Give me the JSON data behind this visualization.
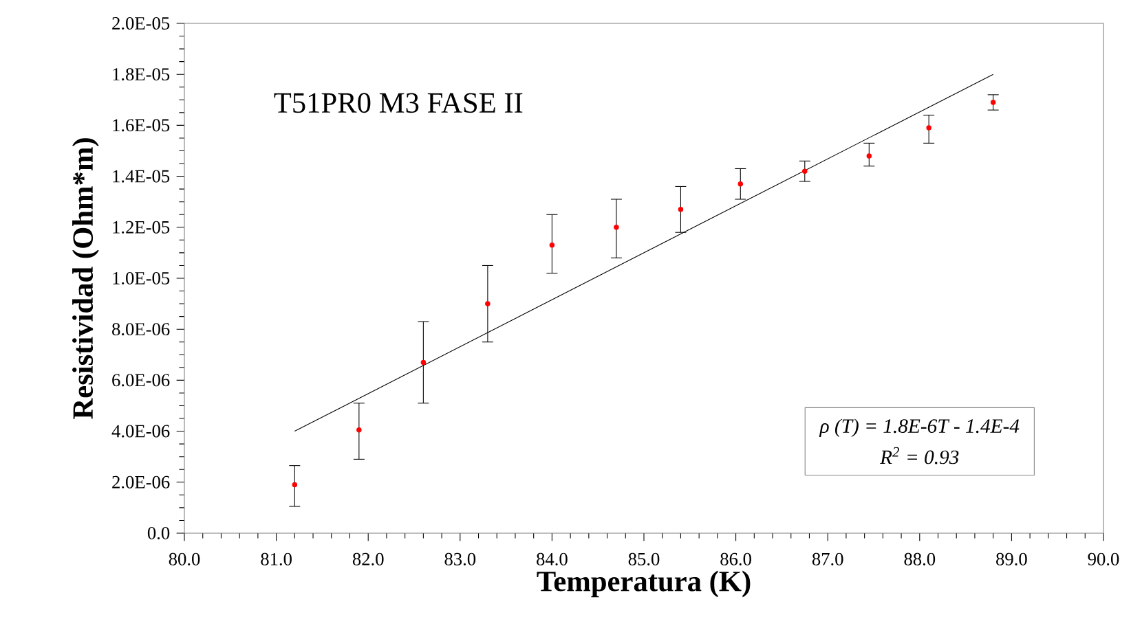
{
  "chart_data": {
    "type": "scatter",
    "xlabel": "Temperatura (K)",
    "ylabel": "Resistividad (Ohm*m)",
    "xlim": [
      80,
      90
    ],
    "ylim": [
      0,
      2e-05
    ],
    "xticks": [
      {
        "value": 80,
        "label": "80.0"
      },
      {
        "value": 81,
        "label": "81.0"
      },
      {
        "value": 82,
        "label": "82.0"
      },
      {
        "value": 83,
        "label": "83.0"
      },
      {
        "value": 84,
        "label": "84.0"
      },
      {
        "value": 85,
        "label": "85.0"
      },
      {
        "value": 86,
        "label": "86.0"
      },
      {
        "value": 87,
        "label": "87.0"
      },
      {
        "value": 88,
        "label": "88.0"
      },
      {
        "value": 89,
        "label": "89.0"
      },
      {
        "value": 90,
        "label": "90.0"
      }
    ],
    "yticks": [
      {
        "value": 0,
        "label": "0.0"
      },
      {
        "value": 2e-06,
        "label": "2.0E-06"
      },
      {
        "value": 4e-06,
        "label": "4.0E-06"
      },
      {
        "value": 6e-06,
        "label": "6.0E-06"
      },
      {
        "value": 8e-06,
        "label": "8.0E-06"
      },
      {
        "value": 1e-05,
        "label": "1.0E-05"
      },
      {
        "value": 1.2e-05,
        "label": "1.2E-05"
      },
      {
        "value": 1.4e-05,
        "label": "1.4E-05"
      },
      {
        "value": 1.6e-05,
        "label": "1.6E-05"
      },
      {
        "value": 1.8e-05,
        "label": "1.8E-05"
      },
      {
        "value": 2e-05,
        "label": "2.0E-05"
      }
    ],
    "annotations": [
      "T51PR0 M3 FASE II",
      "ρ (T) = 1.8E-6T - 1.4E-4",
      "R$^{2}$ = 0.93"
    ],
    "series": [
      {
        "color": "#ff0000",
        "marker": "circle",
        "x": [
          81.2,
          81.9,
          82.6,
          83.3,
          84.0,
          84.7,
          85.4,
          86.05,
          86.75,
          87.45,
          88.1,
          88.8
        ],
        "values": [
          1.9e-06,
          4.05e-06,
          6.7e-06,
          9e-06,
          1.13e-05,
          1.2e-05,
          1.27e-05,
          1.37e-05,
          1.42e-05,
          1.48e-05,
          1.59e-05,
          1.69e-05
        ],
        "errors": [
          [
            1.05e-06,
            2.65e-06
          ],
          [
            2.9e-06,
            5.1e-06
          ],
          [
            5.1e-06,
            8.3e-06
          ],
          [
            7.5e-06,
            1.05e-05
          ],
          [
            1.02e-05,
            1.25e-05
          ],
          [
            1.08e-05,
            1.31e-05
          ],
          [
            1.18e-05,
            1.36e-05
          ],
          [
            1.31e-05,
            1.43e-05
          ],
          [
            1.38e-05,
            1.46e-05
          ],
          [
            1.44e-05,
            1.53e-05
          ],
          [
            1.53e-05,
            1.64e-05
          ],
          [
            1.66e-05,
            1.72e-05
          ]
        ]
      },
      {
        "type": "line",
        "color": "#000000",
        "line_style": "solid",
        "x": [
          81.2,
          88.8
        ],
        "values": [
          4e-06,
          1.8e-05
        ]
      }
    ]
  }
}
